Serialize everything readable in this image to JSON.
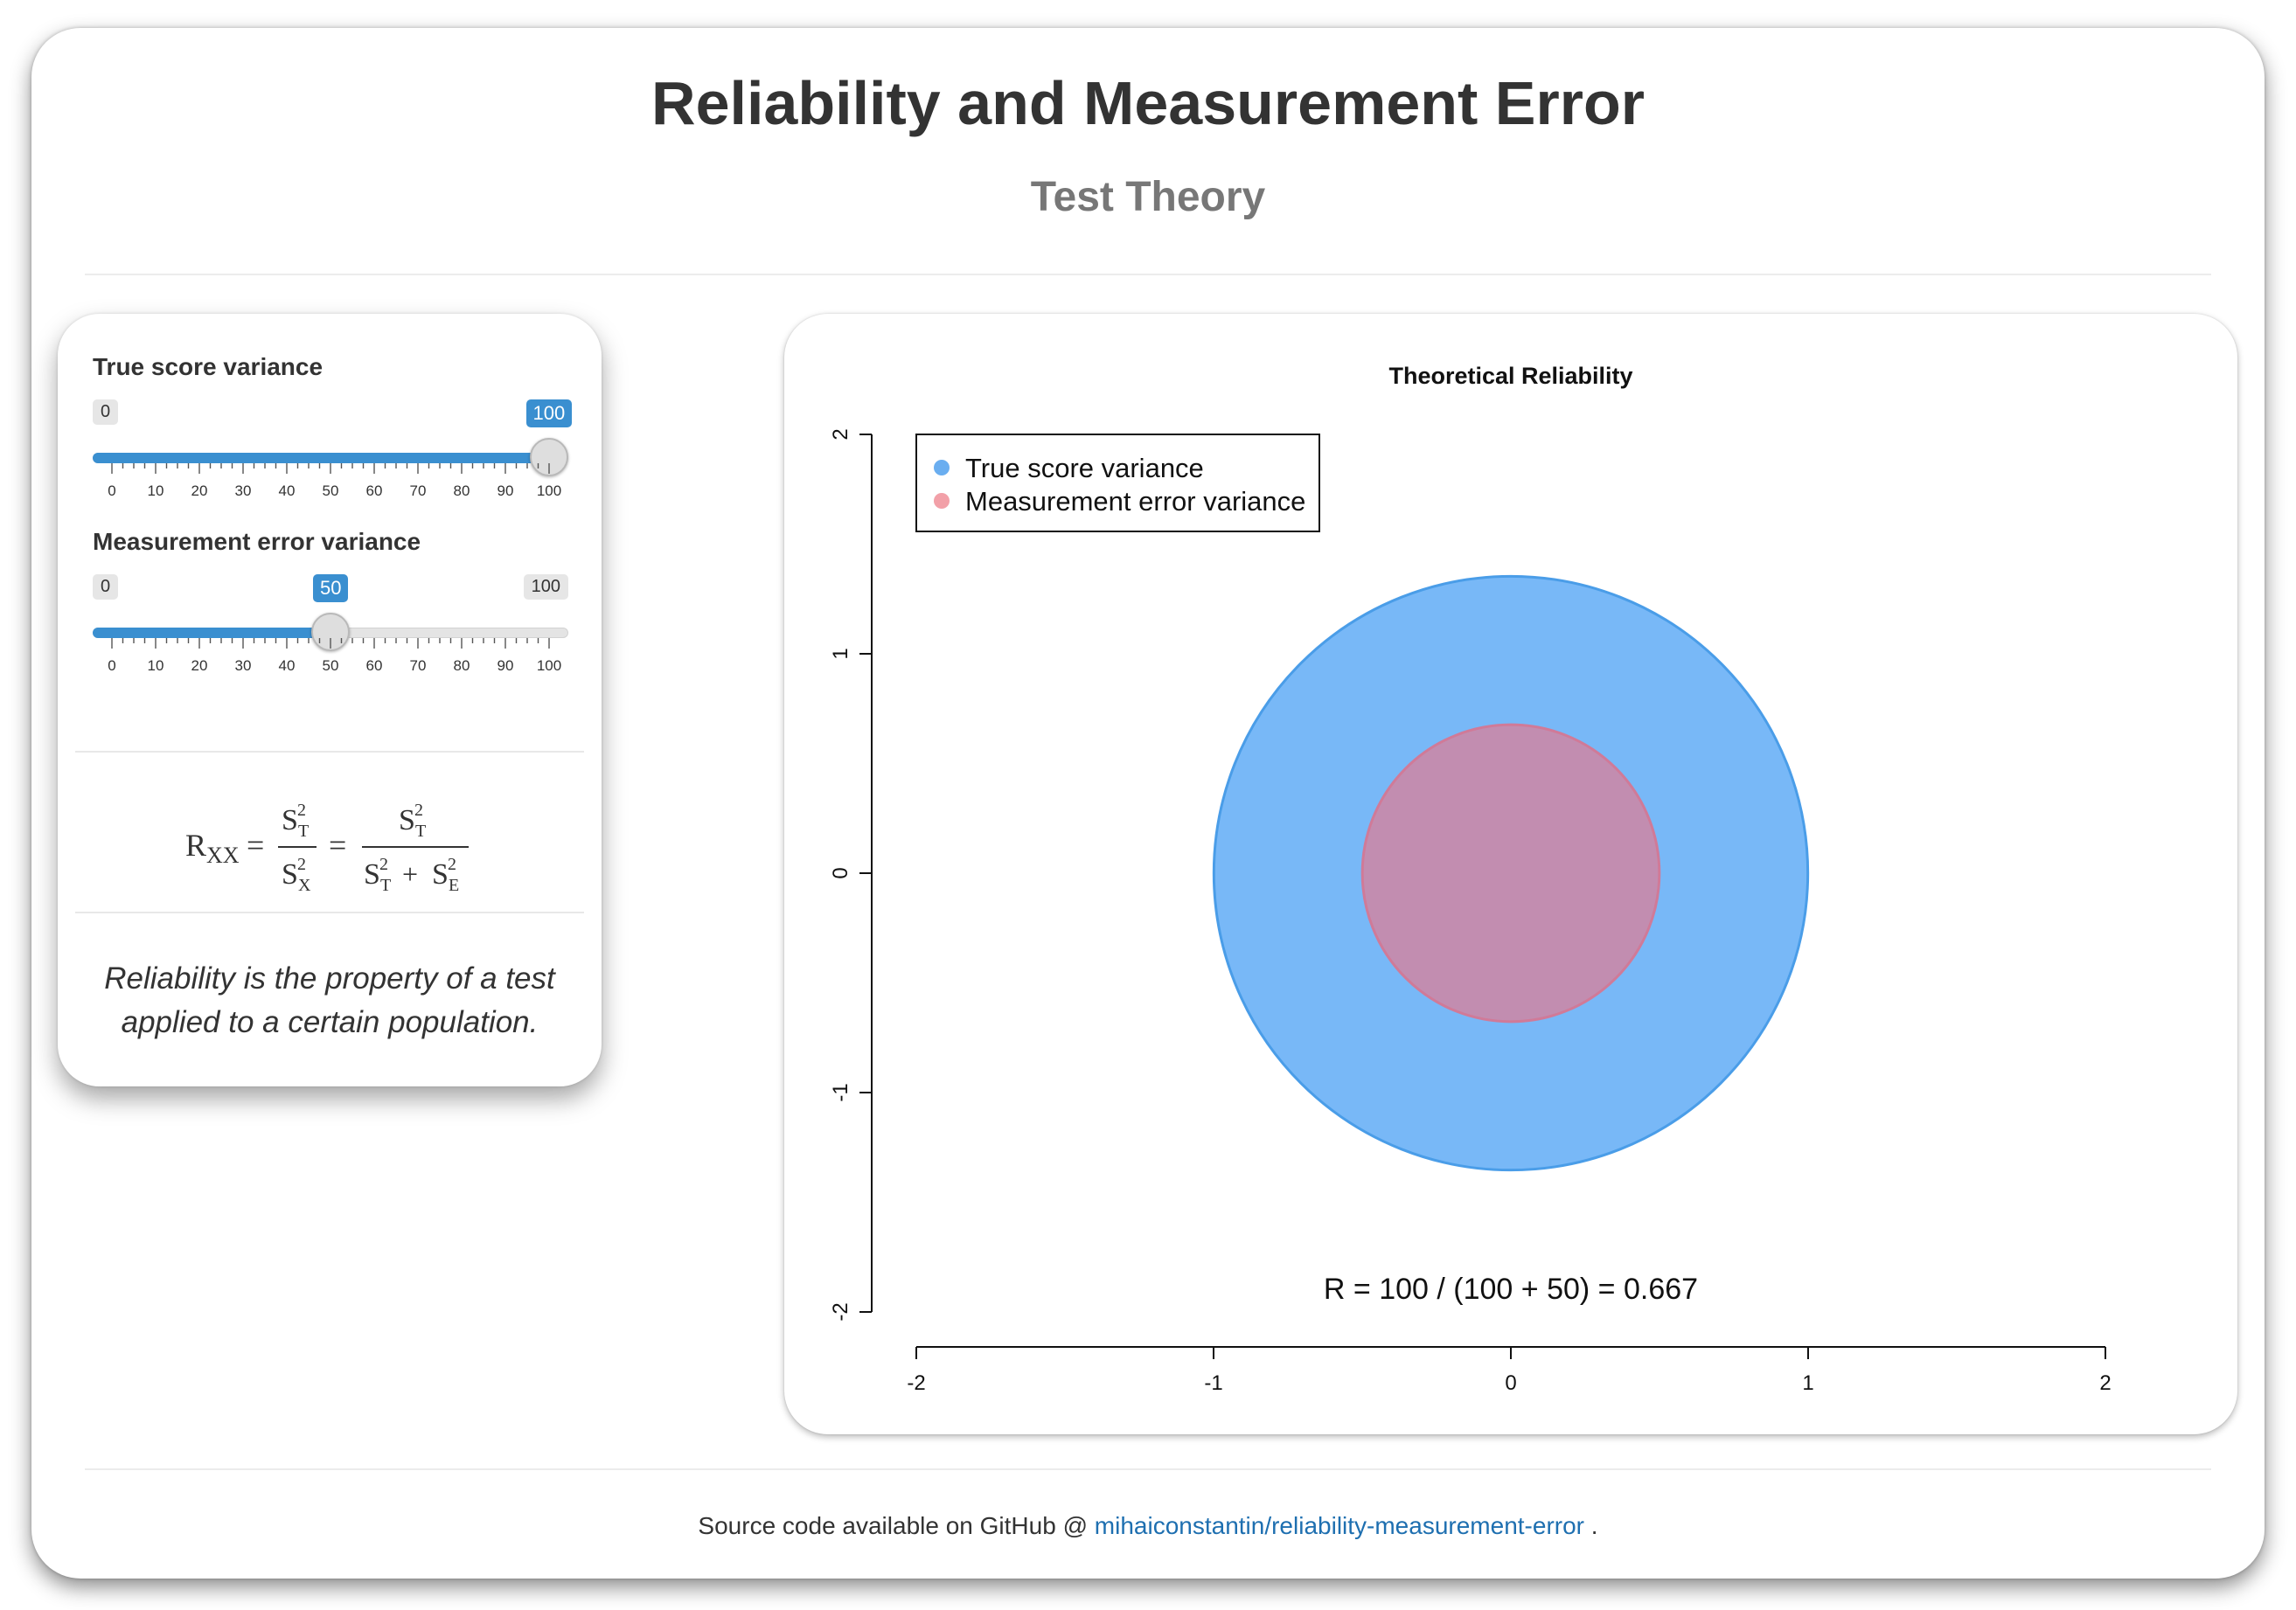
{
  "header": {
    "title": "Reliability and Measurement Error",
    "subtitle": "Test Theory"
  },
  "controls": {
    "true_score": {
      "label": "True score variance",
      "min": 0,
      "max": 100,
      "value": 100,
      "min_label": "0",
      "max_label": "100",
      "value_label": "100"
    },
    "error": {
      "label": "Measurement error variance",
      "min": 0,
      "max": 100,
      "value": 50,
      "min_label": "0",
      "max_label": "100",
      "value_label": "50"
    },
    "tick_labels": [
      "0",
      "10",
      "20",
      "30",
      "40",
      "50",
      "60",
      "70",
      "80",
      "90",
      "100"
    ],
    "formula": {
      "lhs": "R",
      "lhs_sub": "XX",
      "s": "S",
      "sq": "2",
      "sub_t": "T",
      "sub_x": "X",
      "sub_e": "E",
      "equals": "=",
      "plus": "+"
    },
    "note": [
      "Reliability is the property of a test",
      "applied to a certain population."
    ]
  },
  "chart": {
    "accent_fill": "#3a8fd0",
    "circle_true_fill": "#78b8f7",
    "circle_true_stroke": "#4a9de8",
    "circle_error_fill": "#c28db0",
    "circle_error_stroke": "#d07a98",
    "legend_true_color": "#6aaef0",
    "legend_error_color": "#f2a0a8"
  },
  "chart_data": {
    "type": "scatter",
    "title": "Theoretical Reliability",
    "xlim": [
      -2,
      2
    ],
    "ylim": [
      -2,
      2
    ],
    "x_ticks": [
      "-2",
      "-1",
      "0",
      "1",
      "2"
    ],
    "y_ticks": [
      "-2",
      "-1",
      "0",
      "1",
      "2"
    ],
    "legend": [
      "True score variance",
      "Measurement error variance"
    ],
    "legend_position": "top-left",
    "circles": [
      {
        "name": "True score variance",
        "center": [
          0,
          0
        ],
        "radius": 1.0
      },
      {
        "name": "Measurement error variance",
        "center": [
          0,
          0
        ],
        "radius": 0.5
      }
    ],
    "annotation": "R = 100 / (100 + 50) = 0.667"
  },
  "footer": {
    "text": "Source code available on GitHub @ ",
    "link_text": "mihaiconstantin/reliability-measurement-error",
    "suffix": " ."
  }
}
